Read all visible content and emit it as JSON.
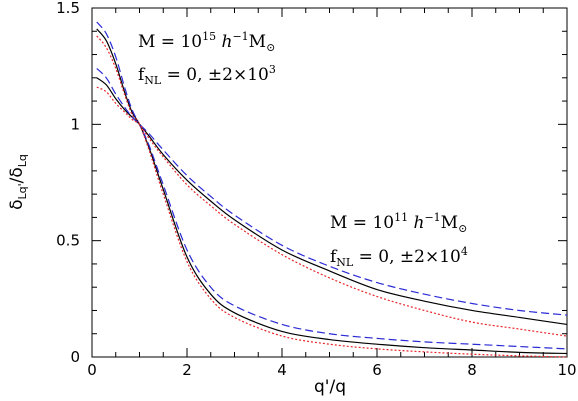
{
  "chart_data": {
    "type": "line",
    "xlabel": "q'/q",
    "ylabel": "δ_Lq'/δ_Lq",
    "xlim": [
      0,
      10
    ],
    "ylim": [
      0,
      1.5
    ],
    "x_ticks": [
      0,
      2,
      4,
      6,
      8,
      10
    ],
    "x_tick_labels": [
      "0",
      "2",
      "4",
      "6",
      "8",
      "10"
    ],
    "y_ticks": [
      0,
      0.5,
      1,
      1.5
    ],
    "y_tick_labels": [
      "0",
      "0.5",
      "1",
      "1.5"
    ],
    "grid": false,
    "series_styles": {
      "fnl_zero": {
        "color": "#000000",
        "dash": "solid"
      },
      "fnl_positive": {
        "color": "#2b2bd6",
        "dash": "dashed"
      },
      "fnl_negative": {
        "color": "#e8262a",
        "dash": "dotted"
      }
    },
    "groups": [
      {
        "id": "M15",
        "x": [
          0.1,
          0.3,
          0.5,
          0.7,
          0.85,
          1.0,
          1.2,
          1.5,
          2,
          2.5,
          3,
          4,
          5,
          6,
          7,
          8,
          9,
          10
        ],
        "series": [
          {
            "style": "fnl_zero",
            "values": [
              1.41,
              1.36,
              1.26,
              1.13,
              1.05,
              1.0,
              0.9,
              0.72,
              0.43,
              0.27,
              0.19,
              0.11,
              0.075,
              0.055,
              0.04,
              0.03,
              0.02,
              0.015
            ]
          },
          {
            "style": "fnl_positive",
            "values": [
              1.44,
              1.39,
              1.29,
              1.15,
              1.06,
              1.0,
              0.91,
              0.74,
              0.46,
              0.3,
              0.22,
              0.14,
              0.1,
              0.08,
              0.065,
              0.055,
              0.045,
              0.035
            ]
          },
          {
            "style": "fnl_negative",
            "values": [
              1.38,
              1.33,
              1.24,
              1.12,
              1.04,
              1.0,
              0.89,
              0.7,
              0.41,
              0.25,
              0.17,
              0.09,
              0.055,
              0.035,
              0.022,
              0.012,
              0.005,
              0.0
            ]
          }
        ]
      },
      {
        "id": "M11",
        "x": [
          0.1,
          0.3,
          0.5,
          0.7,
          0.85,
          1.0,
          1.2,
          1.5,
          2,
          2.5,
          3,
          4,
          5,
          6,
          7,
          8,
          9,
          10
        ],
        "series": [
          {
            "style": "fnl_zero",
            "values": [
              1.2,
              1.17,
              1.11,
              1.06,
              1.03,
              1.0,
              0.95,
              0.87,
              0.76,
              0.67,
              0.59,
              0.46,
              0.37,
              0.29,
              0.24,
              0.2,
              0.17,
              0.14
            ]
          },
          {
            "style": "fnl_positive",
            "values": [
              1.24,
              1.2,
              1.13,
              1.07,
              1.03,
              1.0,
              0.96,
              0.89,
              0.78,
              0.69,
              0.61,
              0.48,
              0.39,
              0.32,
              0.27,
              0.23,
              0.2,
              0.18
            ]
          },
          {
            "style": "fnl_negative",
            "values": [
              1.16,
              1.14,
              1.09,
              1.05,
              1.02,
              1.0,
              0.94,
              0.86,
              0.74,
              0.65,
              0.57,
              0.44,
              0.34,
              0.26,
              0.2,
              0.15,
              0.12,
              0.09
            ]
          }
        ]
      }
    ],
    "annotations": [
      {
        "id": "m15_mass",
        "base": "M = 10",
        "exp": "15",
        "tail": " h",
        "tail_exp": "−1",
        "unit": "M",
        "unit_sub": "⊙"
      },
      {
        "id": "m15_fnl",
        "base": "f",
        "sub": "NL",
        "text": " = 0, ±2×10",
        "exp": "3"
      },
      {
        "id": "m11_mass",
        "base": "M = 10",
        "exp": "11",
        "tail": " h",
        "tail_exp": "−1",
        "unit": "M",
        "unit_sub": "⊙"
      },
      {
        "id": "m11_fnl",
        "base": "f",
        "sub": "NL",
        "text": " = 0, ±2×10",
        "exp": "4"
      }
    ]
  }
}
